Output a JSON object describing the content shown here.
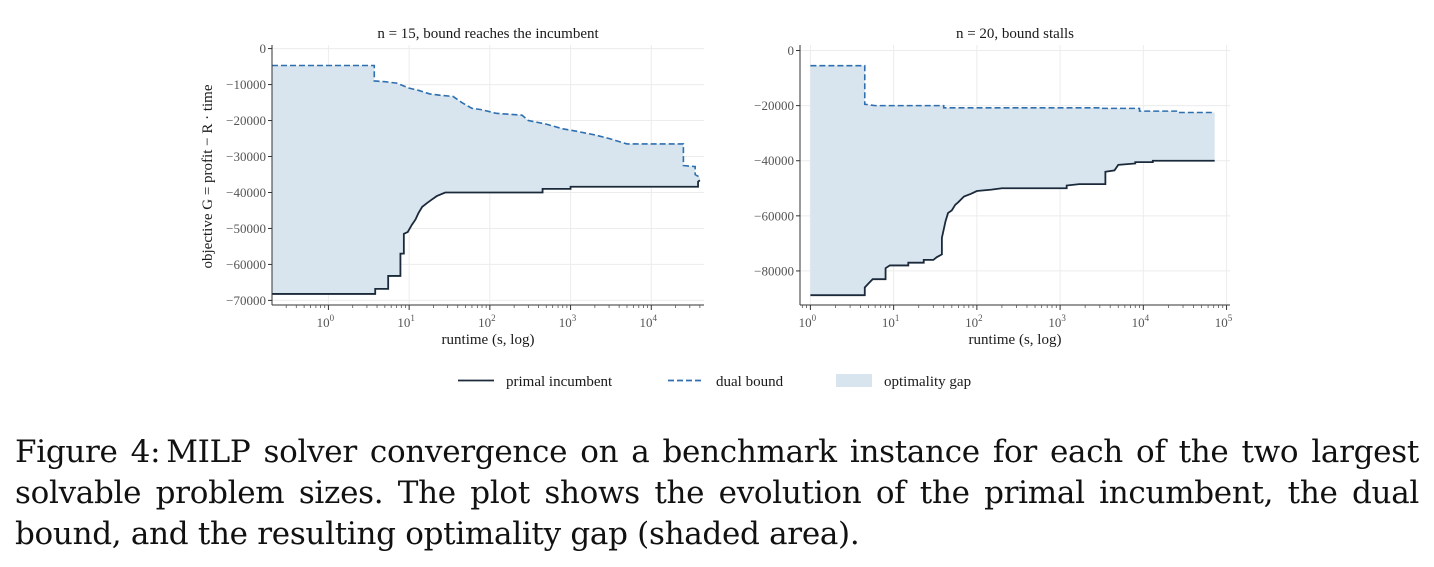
{
  "chart_data": [
    {
      "type": "line",
      "title": "n = 15,  bound reaches the incumbent",
      "xlabel": "runtime (s, log)",
      "ylabel": "objective G = profit − R · time",
      "x_scale": "log",
      "xlim": [
        0.2,
        45000
      ],
      "ylim": [
        -71000,
        1000
      ],
      "yticks": [
        0,
        -10000,
        -20000,
        -30000,
        -40000,
        -50000,
        -60000,
        -70000
      ],
      "ytick_labels": [
        "0",
        "−10000",
        "−20000",
        "−30000",
        "−40000",
        "−50000",
        "−60000",
        "−70000"
      ],
      "xticks": [
        1,
        10,
        100,
        1000,
        10000
      ],
      "xtick_labels": [
        {
          "base": "10",
          "exp": "0"
        },
        {
          "base": "10",
          "exp": "1"
        },
        {
          "base": "10",
          "exp": "2"
        },
        {
          "base": "10",
          "exp": "3"
        },
        {
          "base": "10",
          "exp": "4"
        }
      ],
      "grid": true,
      "series": [
        {
          "name": "primal incumbent",
          "style": "solid",
          "color": "#1b2a3b",
          "points": [
            [
              0.2,
              -68200
            ],
            [
              3.8,
              -68200
            ],
            [
              3.8,
              -66800
            ],
            [
              5.5,
              -66800
            ],
            [
              5.5,
              -63200
            ],
            [
              7.8,
              -63200
            ],
            [
              7.8,
              -57000
            ],
            [
              8.6,
              -57000
            ],
            [
              8.6,
              -51500
            ],
            [
              9.6,
              -51000
            ],
            [
              10.8,
              -49000
            ],
            [
              12.0,
              -47500
            ],
            [
              13.0,
              -45800
            ],
            [
              14.5,
              -44000
            ],
            [
              16.5,
              -43000
            ],
            [
              19.0,
              -42000
            ],
            [
              22.0,
              -41000
            ],
            [
              28.0,
              -40000
            ],
            [
              60.0,
              -40000
            ],
            [
              450.0,
              -40000
            ],
            [
              450.0,
              -39000
            ],
            [
              1000.0,
              -39000
            ],
            [
              1000.0,
              -38400
            ],
            [
              38000.0,
              -38400
            ],
            [
              38000.0,
              -37000
            ],
            [
              40000.0,
              -36600
            ]
          ]
        },
        {
          "name": "dual bound",
          "style": "dashed",
          "color": "#2e6fb0",
          "points": [
            [
              0.2,
              -4700
            ],
            [
              3.7,
              -4700
            ],
            [
              3.7,
              -9000
            ],
            [
              5.0,
              -9200
            ],
            [
              7.0,
              -9600
            ],
            [
              10.0,
              -11000
            ],
            [
              13.0,
              -11600
            ],
            [
              18.0,
              -12600
            ],
            [
              25.0,
              -13000
            ],
            [
              35.0,
              -13300
            ],
            [
              45.0,
              -15000
            ],
            [
              60.0,
              -16600
            ],
            [
              80.0,
              -17000
            ],
            [
              120.0,
              -18000
            ],
            [
              250.0,
              -18500
            ],
            [
              300.0,
              -20000
            ],
            [
              500.0,
              -21000
            ],
            [
              800.0,
              -22300
            ],
            [
              1200.0,
              -23000
            ],
            [
              2000.0,
              -24000
            ],
            [
              3000.0,
              -25000
            ],
            [
              5000.0,
              -26500
            ],
            [
              25000.0,
              -26500
            ],
            [
              25000.0,
              -32500
            ],
            [
              35000.0,
              -32800
            ],
            [
              35000.0,
              -35000
            ],
            [
              40000.0,
              -35800
            ]
          ]
        }
      ]
    },
    {
      "type": "line",
      "title": "n = 20,  bound stalls",
      "xlabel": "runtime (s, log)",
      "ylabel": "",
      "x_scale": "log",
      "xlim": [
        0.75,
        110000
      ],
      "ylim": [
        -92000,
        2000
      ],
      "yticks": [
        0,
        -20000,
        -40000,
        -60000,
        -80000
      ],
      "ytick_labels": [
        "0",
        "−20000",
        "−40000",
        "−60000",
        "−80000"
      ],
      "xticks": [
        1,
        10,
        100,
        1000,
        10000,
        100000
      ],
      "xtick_labels": [
        {
          "base": "10",
          "exp": "0"
        },
        {
          "base": "10",
          "exp": "1"
        },
        {
          "base": "10",
          "exp": "2"
        },
        {
          "base": "10",
          "exp": "3"
        },
        {
          "base": "10",
          "exp": "4"
        },
        {
          "base": "10",
          "exp": "5"
        }
      ],
      "grid": true,
      "series": [
        {
          "name": "primal incumbent",
          "style": "solid",
          "color": "#1b2a3b",
          "points": [
            [
              1.0,
              -88800
            ],
            [
              4.5,
              -88800
            ],
            [
              4.5,
              -86000
            ],
            [
              5.0,
              -84500
            ],
            [
              5.6,
              -83000
            ],
            [
              8.0,
              -83000
            ],
            [
              8.0,
              -79000
            ],
            [
              9.0,
              -78000
            ],
            [
              15.0,
              -78000
            ],
            [
              15.0,
              -77000
            ],
            [
              23.0,
              -77000
            ],
            [
              23.0,
              -76000
            ],
            [
              30.0,
              -76000
            ],
            [
              33.0,
              -75000
            ],
            [
              38.0,
              -74000
            ],
            [
              38.0,
              -68000
            ],
            [
              42.0,
              -62000
            ],
            [
              45.0,
              -59000
            ],
            [
              50.0,
              -58000
            ],
            [
              55.0,
              -56000
            ],
            [
              60.0,
              -55000
            ],
            [
              70.0,
              -53000
            ],
            [
              85.0,
              -52000
            ],
            [
              100.0,
              -51000
            ],
            [
              150.0,
              -50500
            ],
            [
              200.0,
              -50000
            ],
            [
              1200.0,
              -50000
            ],
            [
              1200.0,
              -49000
            ],
            [
              1700.0,
              -48500
            ],
            [
              3500.0,
              -48500
            ],
            [
              3500.0,
              -44000
            ],
            [
              4500.0,
              -43500
            ],
            [
              5000.0,
              -41500
            ],
            [
              8000.0,
              -41000
            ],
            [
              8000.0,
              -40500
            ],
            [
              13000.0,
              -40500
            ],
            [
              13000.0,
              -40000
            ],
            [
              72000.0,
              -40000
            ]
          ]
        },
        {
          "name": "dual bound",
          "style": "dashed",
          "color": "#2e6fb0",
          "points": [
            [
              1.0,
              -5500
            ],
            [
              4.5,
              -5500
            ],
            [
              4.5,
              -19500
            ],
            [
              6.0,
              -20000
            ],
            [
              40.0,
              -20000
            ],
            [
              40.0,
              -20800
            ],
            [
              3000.0,
              -20800
            ],
            [
              3000.0,
              -21000
            ],
            [
              9000.0,
              -21000
            ],
            [
              9000.0,
              -22000
            ],
            [
              25000.0,
              -22000
            ],
            [
              25000.0,
              -22500
            ],
            [
              72000.0,
              -22500
            ]
          ]
        }
      ]
    }
  ],
  "legend": {
    "placement": "bottom",
    "items": [
      {
        "label": "primal incumbent",
        "kind": "solid-line",
        "color": "#1b2a3b"
      },
      {
        "label": "dual bound",
        "kind": "dashed-line",
        "color": "#2e6fb0"
      },
      {
        "label": "optimality gap",
        "kind": "fill",
        "color": "#d9e5ee"
      }
    ]
  },
  "caption": {
    "label": "Figure 4:",
    "text": "MILP solver convergence on a benchmark instance for each of the two largest solvable problem sizes.  The plot shows the evolution of the primal incumbent, the dual bound, and the resulting optimality gap (shaded area)."
  }
}
